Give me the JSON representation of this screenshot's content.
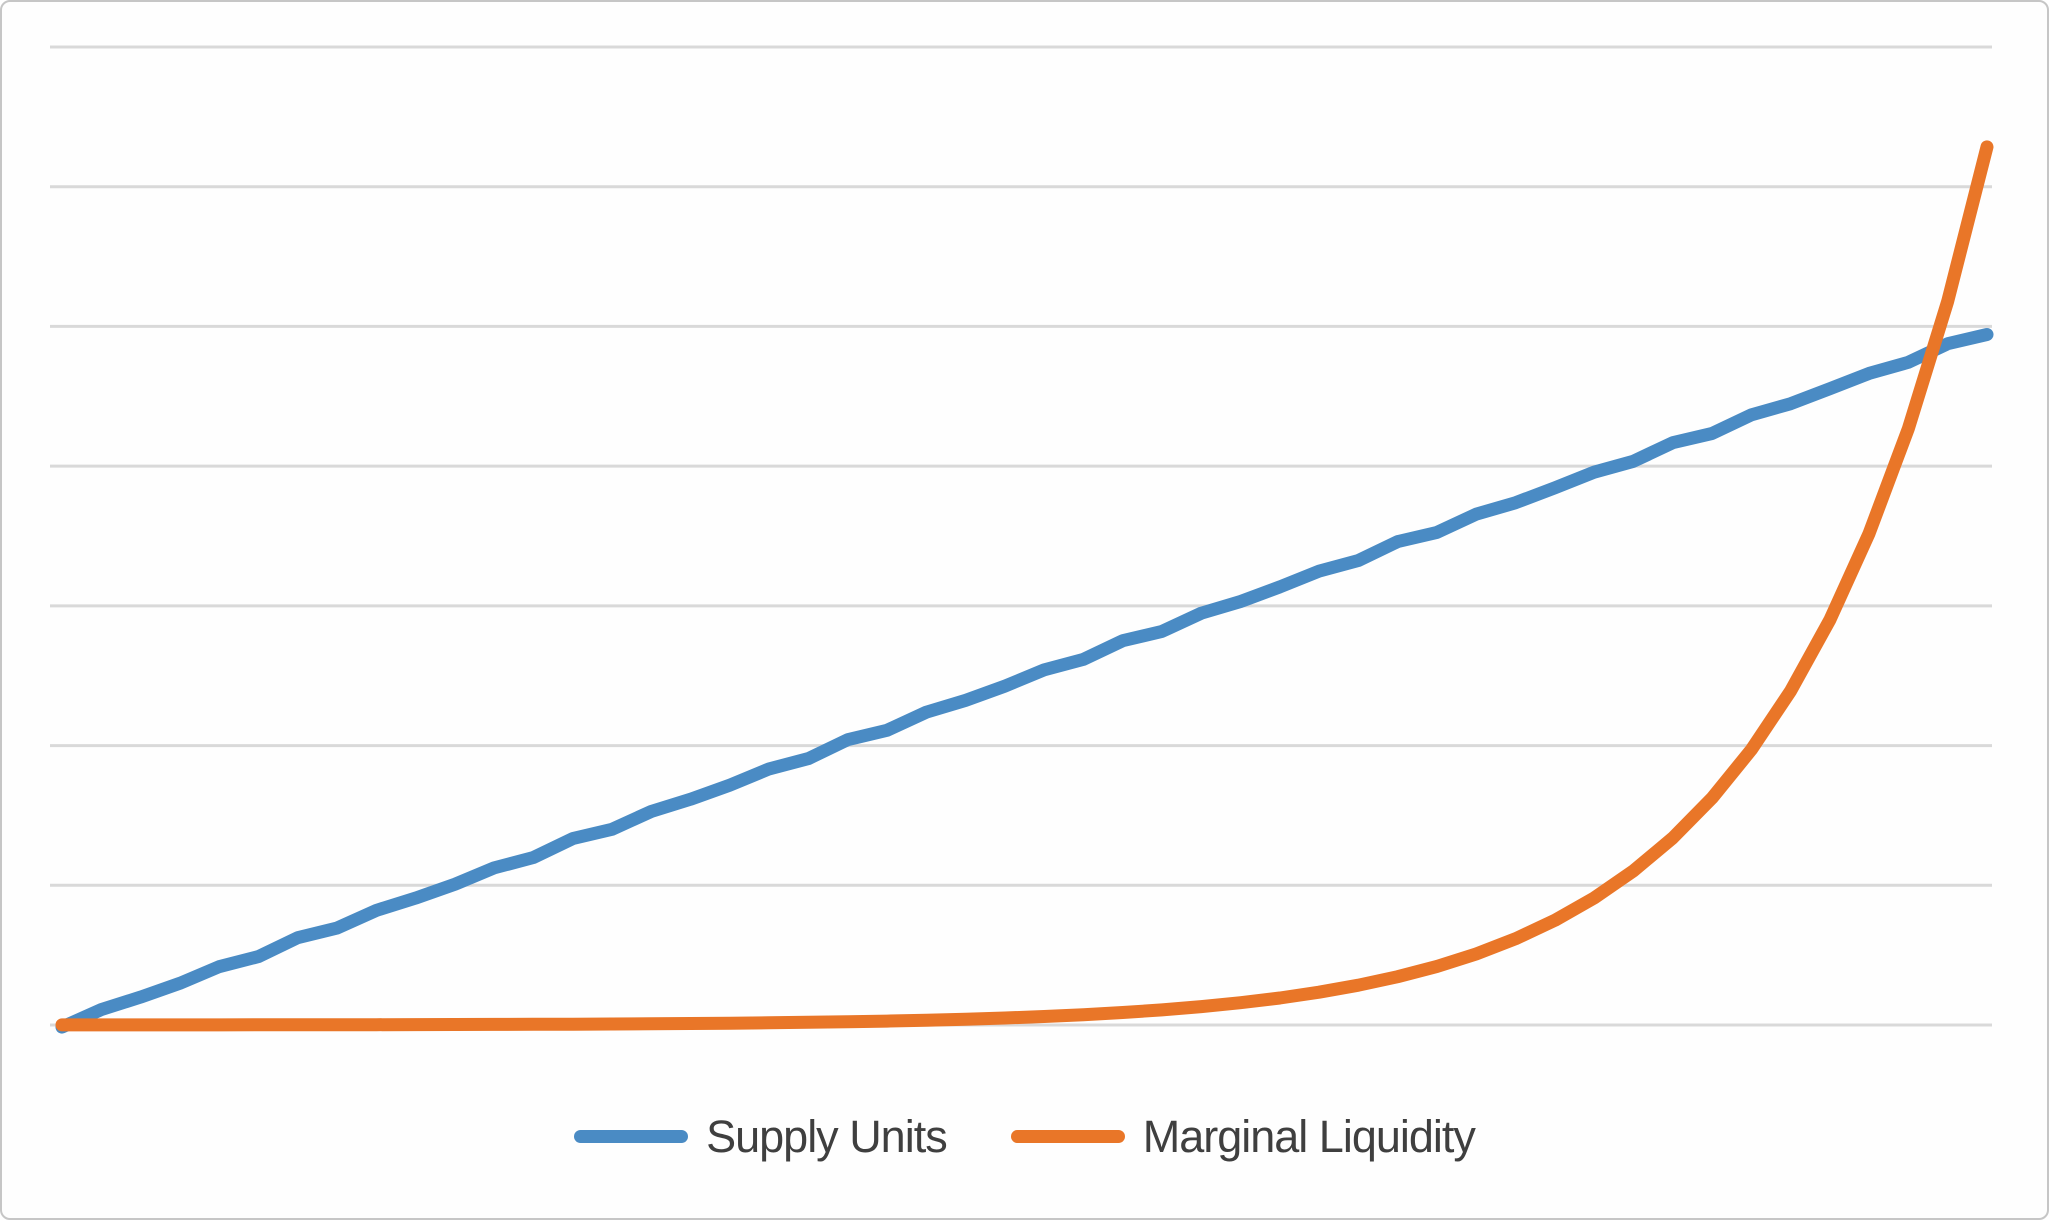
{
  "chart_data": {
    "type": "line",
    "title": "",
    "xlabel": "",
    "ylabel": "",
    "x": [
      1,
      2,
      3,
      4,
      5,
      6,
      7,
      8,
      9,
      10,
      11,
      12,
      13,
      14,
      15,
      16,
      17,
      18,
      19,
      20,
      21,
      22,
      23,
      24,
      25,
      26,
      27,
      28,
      29,
      30,
      31,
      32,
      33,
      34,
      35,
      36,
      37,
      38,
      39,
      40,
      41,
      42,
      43,
      44,
      45,
      46,
      47,
      48,
      49,
      50
    ],
    "series": [
      {
        "name": "Supply Units",
        "color": "#4a8bc4",
        "values": [
          0,
          0.101,
          0.202,
          0.304,
          0.405,
          0.506,
          0.607,
          0.709,
          0.81,
          0.911,
          1.012,
          1.113,
          1.215,
          1.316,
          1.417,
          1.518,
          1.62,
          1.721,
          1.822,
          1.923,
          2.024,
          2.126,
          2.227,
          2.328,
          2.429,
          2.531,
          2.632,
          2.733,
          2.834,
          2.935,
          3.037,
          3.138,
          3.239,
          3.34,
          3.442,
          3.543,
          3.644,
          3.745,
          3.846,
          3.948,
          4.049,
          4.15,
          4.251,
          4.353,
          4.454,
          4.555,
          4.656,
          4.757,
          4.859,
          4.96
        ]
      },
      {
        "name": "Marginal Liquidity",
        "color": "#e97628",
        "values": [
          0.0005,
          0.0006,
          0.0007,
          0.0009,
          0.001,
          0.0013,
          0.0015,
          0.0019,
          0.0023,
          0.0028,
          0.0033,
          0.0041,
          0.0049,
          0.006,
          0.0072,
          0.0088,
          0.0107,
          0.0129,
          0.0157,
          0.019,
          0.0231,
          0.028,
          0.034,
          0.0412,
          0.05,
          0.0607,
          0.0736,
          0.0893,
          0.1084,
          0.1315,
          0.1596,
          0.1936,
          0.2349,
          0.285,
          0.3458,
          0.4195,
          0.509,
          0.6176,
          0.7493,
          0.9091,
          1.103,
          1.3383,
          1.6238,
          1.9701,
          2.3903,
          2.9002,
          3.5188,
          4.2693,
          5.18,
          6.285
        ]
      }
    ],
    "ylim": [
      0,
      7
    ],
    "y_gridline_step": 1,
    "grid": "horizontal",
    "gridline_color": "#d9d9d9",
    "axis_tick_labels_visible": false,
    "legend_position": "bottom"
  },
  "legend": {
    "items": [
      {
        "label": "Supply Units",
        "color": "#4a8bc4"
      },
      {
        "label": "Marginal Liquidity",
        "color": "#e97628"
      }
    ]
  }
}
